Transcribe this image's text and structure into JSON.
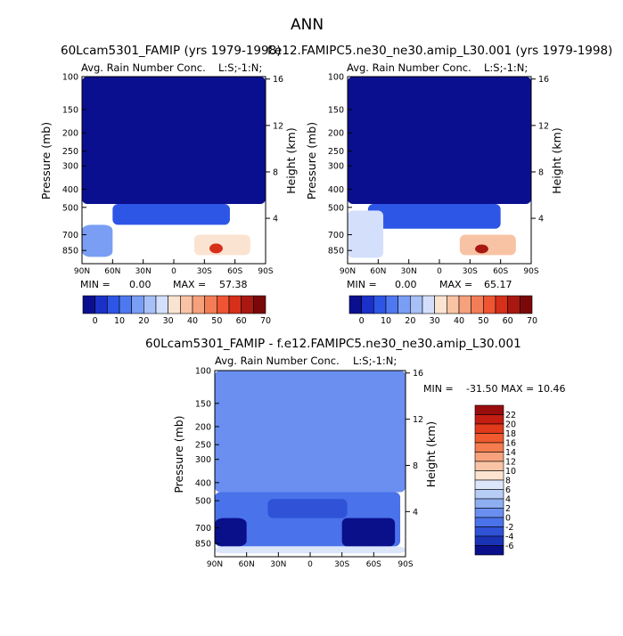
{
  "figure_title": "ANN",
  "panels": [
    {
      "id": "p1",
      "title": "60Lcam5301_FAMIP (yrs 1979-1998)",
      "variable": "Avg. Rain Number Conc.",
      "level_tag": "L:S;-1:N;",
      "stats": {
        "min_label": "MIN =",
        "min": "0.00",
        "max_label": "MAX =",
        "max": "57.38"
      }
    },
    {
      "id": "p2",
      "title": "f.e12.FAMIPC5.ne30_ne30.amip_L30.001 (yrs 1979-1998)",
      "variable": "Avg. Rain Number Conc.",
      "level_tag": "L:S;-1:N;",
      "stats": {
        "min_label": "MIN =",
        "min": "0.00",
        "max_label": "MAX =",
        "max": "65.17"
      }
    },
    {
      "id": "p3",
      "title": "60Lcam5301_FAMIP - f.e12.FAMIPC5.ne30_ne30.amip_L30.001",
      "variable": "Avg. Rain Number Conc.",
      "level_tag": "L:S;-1:N;",
      "stats": {
        "min_label": "MIN =",
        "min": "-31.50",
        "max_label": "MAX =",
        "max": "10.46"
      }
    }
  ],
  "axes": {
    "ylabel_left": "Pressure (mb)",
    "ylabel_right": "Height (km)",
    "pressure_ticks": [
      "100",
      "150",
      "200",
      "250",
      "300",
      "400",
      "500",
      "700",
      "850"
    ],
    "height_ticks": [
      "16",
      "12",
      "8",
      "4"
    ],
    "lat_ticks": [
      "90N",
      "60N",
      "30N",
      "0",
      "30S",
      "60S",
      "90S"
    ]
  },
  "colorbar_abs": {
    "labels": [
      "0",
      "10",
      "20",
      "30",
      "40",
      "50",
      "60",
      "70"
    ],
    "colors": [
      "#0a0f8f",
      "#1a30c8",
      "#2e56e6",
      "#4e78f0",
      "#7a9ef4",
      "#a8c0f8",
      "#d4e0fb",
      "#fbe3d2",
      "#f8c3a4",
      "#f5a17c",
      "#f27d56",
      "#ee5532",
      "#d62f1a",
      "#a81810",
      "#7a0808"
    ]
  },
  "colorbar_diff": {
    "labels": [
      "22",
      "20",
      "18",
      "16",
      "14",
      "12",
      "10",
      "8",
      "6",
      "4",
      "2",
      "0",
      "-2",
      "-4",
      "-6"
    ],
    "colors": [
      "#9a0d0d",
      "#c41d12",
      "#e23a1c",
      "#f05a2e",
      "#f47c4e",
      "#f7a27c",
      "#f9c4a6",
      "#fce4d0",
      "#dbe6fa",
      "#b7cdf6",
      "#8eaef2",
      "#6a8ff0",
      "#4a72ea",
      "#2f52d6",
      "#1a33b6",
      "#0a0f8a"
    ]
  },
  "chart_data": [
    {
      "type": "heatmap",
      "title": "60Lcam5301_FAMIP (yrs 1979-1998)",
      "subtitle": "Avg. Rain Number Conc.",
      "xlabel": "",
      "ylabel": "Pressure (mb)",
      "ylabel_right": "Height (km)",
      "x_ticks": [
        "90N",
        "60N",
        "30N",
        "0",
        "30S",
        "60S",
        "90S"
      ],
      "y_ticks": [
        100,
        150,
        200,
        250,
        300,
        400,
        500,
        700,
        850
      ],
      "y_scale": "log",
      "ylim": [
        100,
        1000
      ],
      "contour_levels": [
        0,
        10,
        20,
        30,
        40,
        50,
        60,
        70
      ],
      "min": 0.0,
      "max": 57.38,
      "regions": [
        {
          "lat": [
            90,
            -90
          ],
          "p": [
            100,
            480
          ],
          "value": 3
        },
        {
          "lat": [
            60,
            -55
          ],
          "p": [
            480,
            620
          ],
          "value": 10
        },
        {
          "lat": [
            90,
            60
          ],
          "p": [
            620,
            920
          ],
          "value": 20
        },
        {
          "lat": [
            -20,
            -75
          ],
          "p": [
            700,
            900
          ],
          "value": 35
        },
        {
          "lat": [
            -35,
            -48
          ],
          "p": [
            780,
            880
          ],
          "value": 57
        }
      ]
    },
    {
      "type": "heatmap",
      "title": "f.e12.FAMIPC5.ne30_ne30.amip_L30.001 (yrs 1979-1998)",
      "subtitle": "Avg. Rain Number Conc.",
      "xlabel": "",
      "ylabel": "Pressure (mb)",
      "ylabel_right": "Height (km)",
      "x_ticks": [
        "90N",
        "60N",
        "30N",
        "0",
        "30S",
        "60S",
        "90S"
      ],
      "y_ticks": [
        100,
        150,
        200,
        250,
        300,
        400,
        500,
        700,
        850
      ],
      "y_scale": "log",
      "ylim": [
        100,
        1000
      ],
      "contour_levels": [
        0,
        10,
        20,
        30,
        40,
        50,
        60,
        70
      ],
      "min": 0.0,
      "max": 65.17,
      "regions": [
        {
          "lat": [
            90,
            -90
          ],
          "p": [
            100,
            480
          ],
          "value": 3
        },
        {
          "lat": [
            70,
            -60
          ],
          "p": [
            480,
            650
          ],
          "value": 12
        },
        {
          "lat": [
            90,
            55
          ],
          "p": [
            520,
            930
          ],
          "value": 28
        },
        {
          "lat": [
            -20,
            -75
          ],
          "p": [
            700,
            900
          ],
          "value": 38
        },
        {
          "lat": [
            -35,
            -48
          ],
          "p": [
            790,
            880
          ],
          "value": 65
        }
      ]
    },
    {
      "type": "heatmap",
      "title": "60Lcam5301_FAMIP - f.e12.FAMIPC5.ne30_ne30.amip_L30.001",
      "subtitle": "Avg. Rain Number Conc.",
      "xlabel": "",
      "ylabel": "Pressure (mb)",
      "ylabel_right": "Height (km)",
      "x_ticks": [
        "90N",
        "60N",
        "30N",
        "0",
        "30S",
        "60S",
        "90S"
      ],
      "y_ticks": [
        100,
        150,
        200,
        250,
        300,
        400,
        500,
        700,
        850
      ],
      "y_scale": "log",
      "ylim": [
        100,
        1000
      ],
      "contour_levels": [
        -6,
        -4,
        -2,
        0,
        2,
        4,
        6,
        8,
        10,
        12,
        14,
        16,
        18,
        20,
        22
      ],
      "min": -31.5,
      "max": 10.46,
      "regions": [
        {
          "lat": [
            90,
            -90
          ],
          "p": [
            100,
            450
          ],
          "value": 0
        },
        {
          "lat": [
            90,
            -85
          ],
          "p": [
            450,
            880
          ],
          "value": -2
        },
        {
          "lat": [
            40,
            -35
          ],
          "p": [
            490,
            620
          ],
          "value": -4
        },
        {
          "lat": [
            90,
            60
          ],
          "p": [
            620,
            880
          ],
          "value": -8
        },
        {
          "lat": [
            -30,
            -80
          ],
          "p": [
            620,
            880
          ],
          "value": -8
        },
        {
          "lat": [
            90,
            -90
          ],
          "p": [
            880,
            960
          ],
          "value": 6
        }
      ]
    }
  ]
}
